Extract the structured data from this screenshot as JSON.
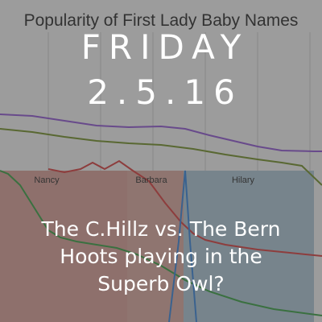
{
  "background": {
    "chart_title": "Popularity of First Lady Baby Names",
    "region_labels": [
      "Nancy",
      "Barbara",
      "Hilary"
    ],
    "colors": {
      "nancy_region": "#d79b92",
      "barbara_region": "#d8a59a",
      "hilary_region": "#a9c2d3",
      "purple_line": "#8a4fd0",
      "olive_line": "#6d8a1f",
      "green_line": "#2f9a3a",
      "red_line": "#d43434",
      "blue_line": "#2f7fd8"
    }
  },
  "overlay": {
    "day": "FRIDAY",
    "date": "2.5.16",
    "caption_lines": [
      "The C.Hillz vs. The Bern",
      "Hoots playing in the",
      "Superb Owl?"
    ]
  }
}
